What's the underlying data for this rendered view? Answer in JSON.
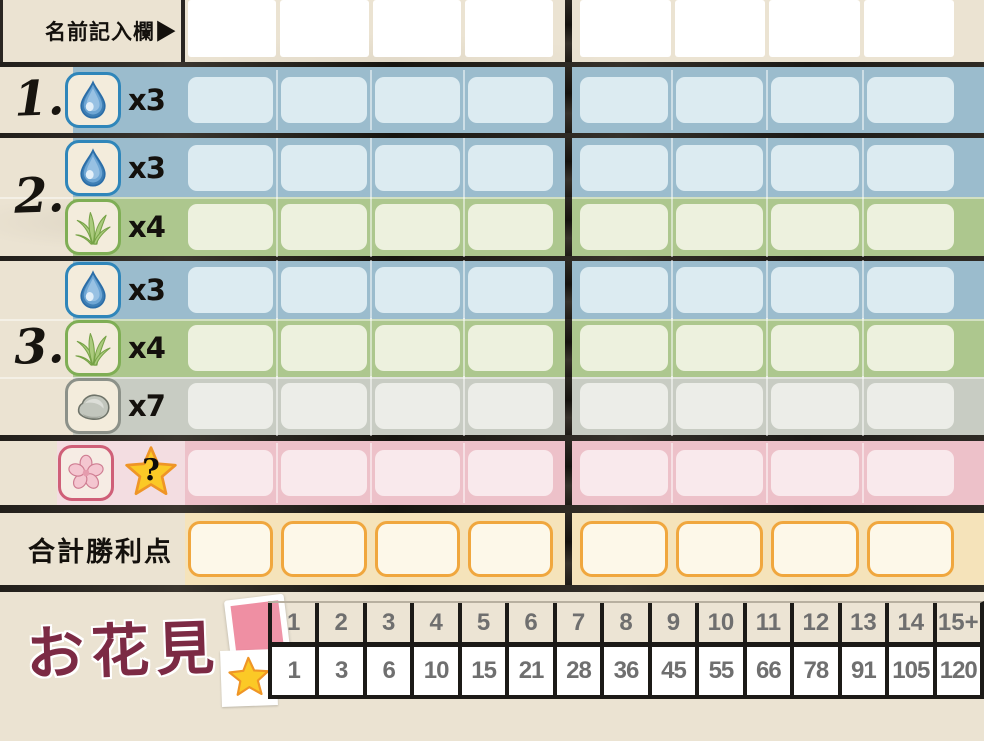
{
  "title": {
    "text": "お花見"
  },
  "name_row": {
    "label": "名前記入欄▶"
  },
  "sections": [
    {
      "number": "1.",
      "rows": [
        {
          "resource": "water-drop",
          "mult": "x3",
          "color": "blue"
        }
      ]
    },
    {
      "number": "2.",
      "rows": [
        {
          "resource": "water-drop",
          "mult": "x3",
          "color": "blue"
        },
        {
          "resource": "grass",
          "mult": "x4",
          "color": "green"
        }
      ]
    },
    {
      "number": "3.",
      "rows": [
        {
          "resource": "water-drop",
          "mult": "x3",
          "color": "blue"
        },
        {
          "resource": "grass",
          "mult": "x4",
          "color": "green"
        },
        {
          "resource": "stone",
          "mult": "x7",
          "color": "gray"
        }
      ]
    }
  ],
  "flower_row": {
    "resource": "cherry-blossom",
    "mult": "?"
  },
  "total_row": {
    "label": "合計勝利点"
  },
  "score_table": {
    "counts": [
      "1",
      "2",
      "3",
      "4",
      "5",
      "6",
      "7",
      "8",
      "9",
      "10",
      "11",
      "12",
      "13",
      "14",
      "15+"
    ],
    "points": [
      "1",
      "3",
      "6",
      "10",
      "15",
      "21",
      "28",
      "36",
      "45",
      "55",
      "66",
      "78",
      "91",
      "105",
      "120"
    ]
  },
  "colors": {
    "paper": "#ebe3d2",
    "blue_band": "#9bbccd",
    "blue_cell": "#dcebf1",
    "green_band": "#adc78e",
    "green_cell": "#edf1de",
    "gray_band": "#c8ccc3",
    "gray_cell": "#ecede8",
    "pink_band": "#edc1c9",
    "pink_cell": "#f9e9ec",
    "gold_band": "#f5e3ba",
    "gold_cell_border": "#f0a73e",
    "title_maroon": "#7c2a44",
    "card_pink": "#ef8fa3",
    "star_gold": "#fbc926",
    "line_dark": "#1c1a17"
  }
}
